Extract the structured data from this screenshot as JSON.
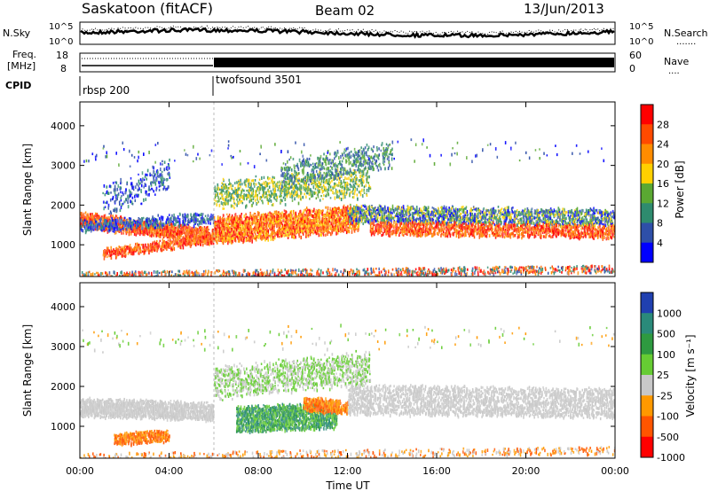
{
  "header": {
    "site": "Saskatoon (fitACF)",
    "beam": "Beam 02",
    "date": "13/Jun/2013"
  },
  "noise_panel": {
    "left_label": "N.Sky",
    "right_label": "N.Search",
    "left_ticks": [
      "10^5",
      "10^0"
    ],
    "right_ticks": [
      "10^5",
      "10^0"
    ]
  },
  "freq_panel": {
    "left_label_1": "Freq.",
    "left_label_2": "[MHz]",
    "right_label": "Nave",
    "left_ticks": [
      "18",
      "8"
    ],
    "right_ticks": [
      "60",
      "0"
    ]
  },
  "cpid_panel": {
    "label": "CPID",
    "modes": [
      {
        "name": "rbsp 200",
        "start_hour": 0
      },
      {
        "name": "twofsound 3501",
        "start_hour": 6
      }
    ]
  },
  "chart_data": [
    {
      "type": "heatmap",
      "panel": "power",
      "ylabel": "Slant Range [km]",
      "yticks": [
        "4000",
        "3000",
        "2000",
        "1000"
      ],
      "ylim": [
        200,
        4600
      ],
      "xlim": [
        0,
        24
      ],
      "colorbar": {
        "label": "Power [dB]",
        "ticks": [
          "28",
          "24",
          "20",
          "16",
          "12",
          "8",
          "4"
        ],
        "colors": [
          "#ff0000",
          "#ff4a00",
          "#ff8c00",
          "#ffd000",
          "#5aa832",
          "#2e8b6e",
          "#2e4fa8",
          "#0000ff"
        ]
      }
    },
    {
      "type": "heatmap",
      "panel": "velocity",
      "ylabel": "Slant Range [km]",
      "yticks": [
        "4000",
        "3000",
        "2000",
        "1000"
      ],
      "ylim": [
        200,
        4600
      ],
      "xlim": [
        0,
        24
      ],
      "xlabel": "Time UT",
      "xticks": [
        "00:00",
        "04:00",
        "08:00",
        "12:00",
        "16:00",
        "20:00",
        "00:00"
      ],
      "colorbar": {
        "label": "Velocity [m s⁻¹]",
        "ticks": [
          "1000",
          "500",
          "100",
          "25",
          "-25",
          "-100",
          "-500",
          "-1000"
        ],
        "colors": [
          "#2040b0",
          "#2a8a7a",
          "#2e9a40",
          "#66cc33",
          "#c8c8c8",
          "#ff9900",
          "#ff5500",
          "#ff0000"
        ]
      }
    }
  ]
}
